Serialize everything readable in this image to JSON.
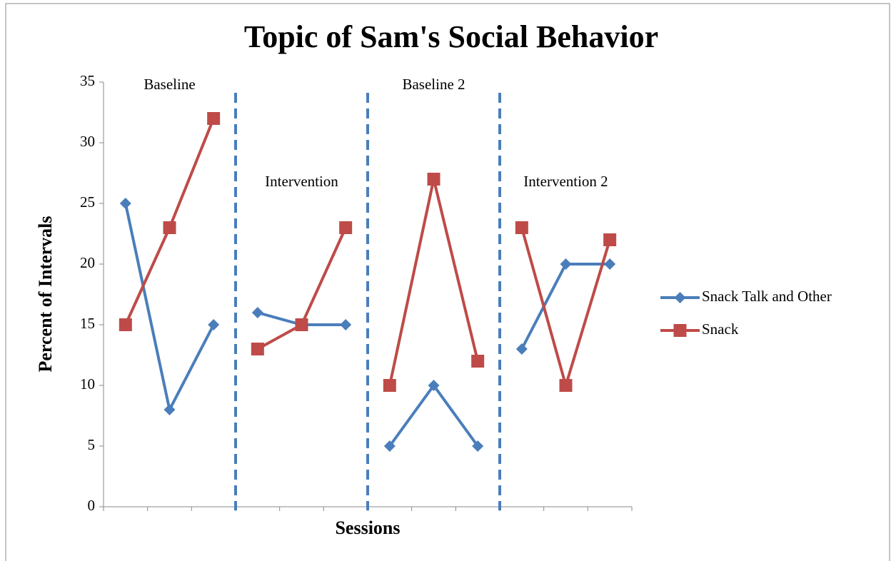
{
  "chart_data": {
    "type": "line",
    "title": "Topic of Sam's Social Behavior",
    "x_label": "Sessions",
    "y_label": "Percent of Intervals",
    "categories": [
      null,
      null,
      null,
      null,
      null,
      null,
      null,
      null,
      null,
      null,
      null,
      null
    ],
    "phases": [
      {
        "label": "Baseline",
        "size": 3
      },
      {
        "label": "Intervention",
        "size": 3
      },
      {
        "label": "Baseline 2",
        "size": 3
      },
      {
        "label": "Intervention 2",
        "size": 3
      }
    ],
    "series": [
      {
        "name": "Snack Talk and Other",
        "color": "#4a7ebb",
        "marker": "diamond",
        "values": [
          25,
          8,
          15,
          16,
          15,
          15,
          5,
          10,
          5,
          13,
          20,
          20
        ]
      },
      {
        "name": "Snack",
        "color": "#be4b48",
        "marker": "square",
        "values": [
          15,
          23,
          32,
          13,
          15,
          23,
          10,
          27,
          12,
          23,
          10,
          22
        ]
      }
    ],
    "ylim": [
      0,
      35
    ],
    "yticks": [
      0,
      5,
      10,
      15,
      20,
      25,
      30,
      35
    ],
    "legend": "right"
  }
}
